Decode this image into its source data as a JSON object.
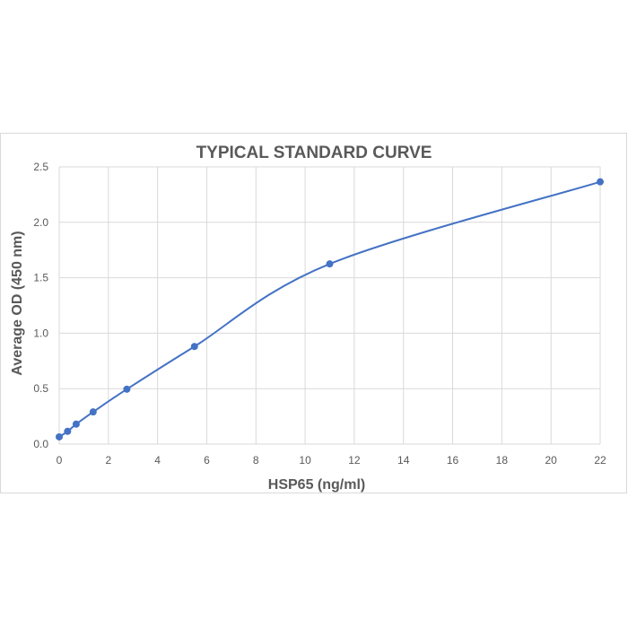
{
  "chart_data": {
    "type": "scatter",
    "title": "TYPICAL STANDARD CURVE",
    "xlabel": "HSP65 (ng/ml)",
    "ylabel": "Average OD (450 nm)",
    "xlim": [
      0,
      22
    ],
    "ylim": [
      0,
      2.5
    ],
    "x_ticks": [
      0,
      2,
      4,
      6,
      8,
      10,
      12,
      14,
      16,
      18,
      20,
      22
    ],
    "y_ticks": [
      "0.0",
      "0.5",
      "1.0",
      "1.5",
      "2.0",
      "2.5"
    ],
    "grid": true,
    "smooth_line": true,
    "colors": {
      "series": "#4472c4",
      "grid": "#d9d9d9",
      "text": "#595959"
    },
    "series": [
      {
        "x": [
          0,
          0.34,
          0.69,
          1.38,
          2.75,
          5.5,
          11,
          22
        ],
        "y": [
          0.065,
          0.115,
          0.18,
          0.29,
          0.495,
          0.88,
          1.625,
          2.365
        ]
      }
    ]
  }
}
